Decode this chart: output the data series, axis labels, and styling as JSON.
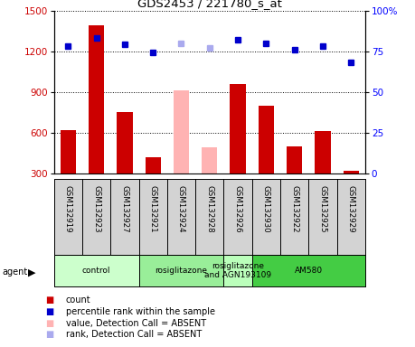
{
  "title": "GDS2453 / 221780_s_at",
  "samples": [
    "GSM132919",
    "GSM132923",
    "GSM132927",
    "GSM132921",
    "GSM132924",
    "GSM132928",
    "GSM132926",
    "GSM132930",
    "GSM132922",
    "GSM132925",
    "GSM132929"
  ],
  "bar_values": [
    620,
    1390,
    755,
    420,
    910,
    490,
    955,
    800,
    500,
    610,
    320
  ],
  "bar_colors": [
    "#cc0000",
    "#cc0000",
    "#cc0000",
    "#cc0000",
    "#ffb3b3",
    "#ffb3b3",
    "#cc0000",
    "#cc0000",
    "#cc0000",
    "#cc0000",
    "#cc0000"
  ],
  "dot_values": [
    78,
    83,
    79,
    74,
    80,
    77,
    82,
    80,
    76,
    78,
    68
  ],
  "dot_colors": [
    "#0000cc",
    "#0000cc",
    "#0000cc",
    "#0000cc",
    "#aaaaee",
    "#aaaaee",
    "#0000cc",
    "#0000cc",
    "#0000cc",
    "#0000cc",
    "#0000cc"
  ],
  "ylim_left": [
    300,
    1500
  ],
  "ylim_right": [
    0,
    100
  ],
  "yticks_left": [
    300,
    600,
    900,
    1200,
    1500
  ],
  "yticks_right": [
    0,
    25,
    50,
    75,
    100
  ],
  "ytick_right_labels": [
    "0",
    "25",
    "50",
    "75",
    "100%"
  ],
  "agent_groups": [
    {
      "label": "control",
      "start": 0,
      "end": 3,
      "color": "#ccffcc"
    },
    {
      "label": "rosiglitazone",
      "start": 3,
      "end": 6,
      "color": "#99ee99"
    },
    {
      "label": "rosiglitazone\nand AGN193109",
      "start": 6,
      "end": 7,
      "color": "#bbffbb"
    },
    {
      "label": "AM580",
      "start": 7,
      "end": 11,
      "color": "#44cc44"
    }
  ],
  "legend_data": [
    {
      "symbol": "s",
      "color": "#cc0000",
      "label": "count"
    },
    {
      "symbol": "s",
      "color": "#0000cc",
      "label": "percentile rank within the sample"
    },
    {
      "symbol": "s",
      "color": "#ffb3b3",
      "label": "value, Detection Call = ABSENT"
    },
    {
      "symbol": "s",
      "color": "#aaaaee",
      "label": "rank, Detection Call = ABSENT"
    }
  ],
  "sample_bg": "#d3d3d3",
  "chart_bg": "#ffffff",
  "bar_width": 0.55
}
